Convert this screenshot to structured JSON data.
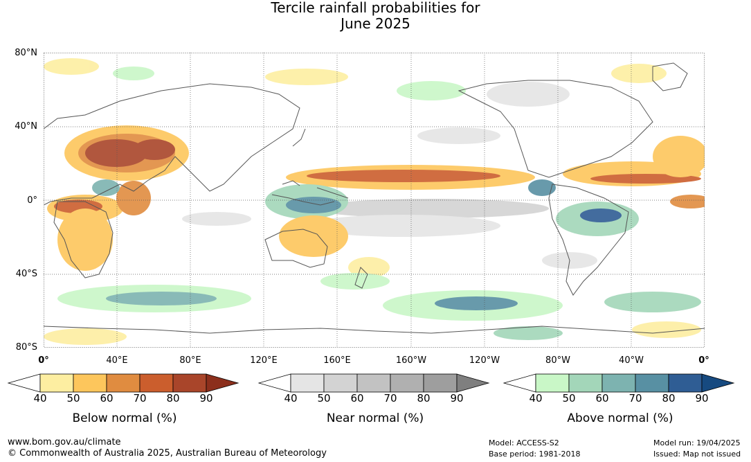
{
  "title": {
    "line1": "Tercile rainfall probabilities for",
    "line2": "June 2025"
  },
  "map": {
    "lat_labels": [
      "80°N",
      "40°N",
      "0°",
      "40°S",
      "80°S"
    ],
    "lon_labels": [
      "0°",
      "40°E",
      "80°E",
      "120°E",
      "160°E",
      "160°W",
      "120°W",
      "80°W",
      "40°W",
      "0°"
    ],
    "ocean_color": "#ffffff",
    "coastline_color": "#555555",
    "grid_style": "dotted"
  },
  "legends": [
    {
      "caption": "Below normal (%)",
      "ticks": [
        "40",
        "50",
        "60",
        "70",
        "80",
        "90"
      ],
      "colors": [
        "#ffffff",
        "#fdeea1",
        "#fdc65c",
        "#e08c40",
        "#cb5e2d",
        "#a9452a",
        "#8c2f1c"
      ]
    },
    {
      "caption": "Near normal (%)",
      "ticks": [
        "40",
        "50",
        "60",
        "70",
        "80",
        "90"
      ],
      "colors": [
        "#ffffff",
        "#e5e5e5",
        "#d3d3d3",
        "#c2c2c2",
        "#b0b0b0",
        "#9e9e9e",
        "#7f7f7f"
      ]
    },
    {
      "caption": "Above normal (%)",
      "ticks": [
        "40",
        "50",
        "60",
        "70",
        "80",
        "90"
      ],
      "colors": [
        "#ffffff",
        "#c9f7c7",
        "#a3d6b9",
        "#7db3b0",
        "#5890a3",
        "#2f5d94",
        "#174a80"
      ]
    }
  ],
  "footer": {
    "website": "www.bom.gov.au/climate",
    "copyright": "© Commonwealth of Australia 2025, Australian Bureau of Meteorology",
    "model": "Model: ACCESS-S2",
    "base_period": "Base period: 1981-2018",
    "model_run": "Model run: 19/04/2025",
    "issued": "Issued: Map not issued"
  }
}
